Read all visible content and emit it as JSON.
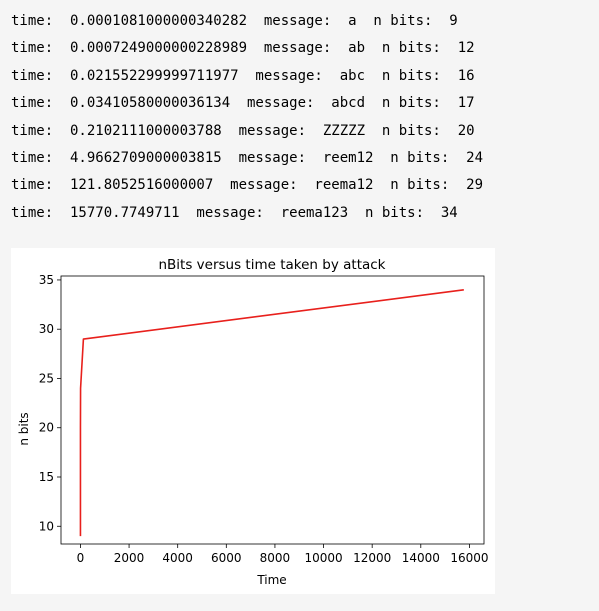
{
  "output": {
    "lines": [
      "time:  0.0001081000000340282  message:  a  n bits:  9",
      "time:  0.0007249000000228989  message:  ab  n bits:  12",
      "time:  0.021552299999711977  message:  abc  n bits:  16",
      "time:  0.03410580000036134  message:  abcd  n bits:  17",
      "time:  0.2102111000003788  message:  ZZZZZ  n bits:  20",
      "time:  4.9662709000003815  message:  reem12  n bits:  24",
      "time:  121.8052516000007  message:  reema12  n bits:  29",
      "time:  15770.7749711  message:  reema123  n bits:  34"
    ]
  },
  "chart_data": {
    "type": "line",
    "title": "nBits versus time taken by attack",
    "xlabel": "Time",
    "ylabel": "n bits",
    "xlim": [
      -800,
      16600
    ],
    "ylim": [
      8.2,
      35.4
    ],
    "xticks": [
      0,
      2000,
      4000,
      6000,
      8000,
      10000,
      12000,
      14000,
      16000
    ],
    "yticks": [
      10,
      15,
      20,
      25,
      30,
      35
    ],
    "grid": false,
    "line_color": "#e8201c",
    "series": [
      {
        "x": [
          0.0001081000000340282,
          0.0007249000000228989,
          0.021552299999711977,
          0.03410580000036134,
          0.2102111000003788,
          4.9662709000003815,
          121.8052516000007,
          15770.7749711
        ],
        "y": [
          9,
          12,
          16,
          17,
          20,
          24,
          29,
          34
        ]
      }
    ]
  }
}
